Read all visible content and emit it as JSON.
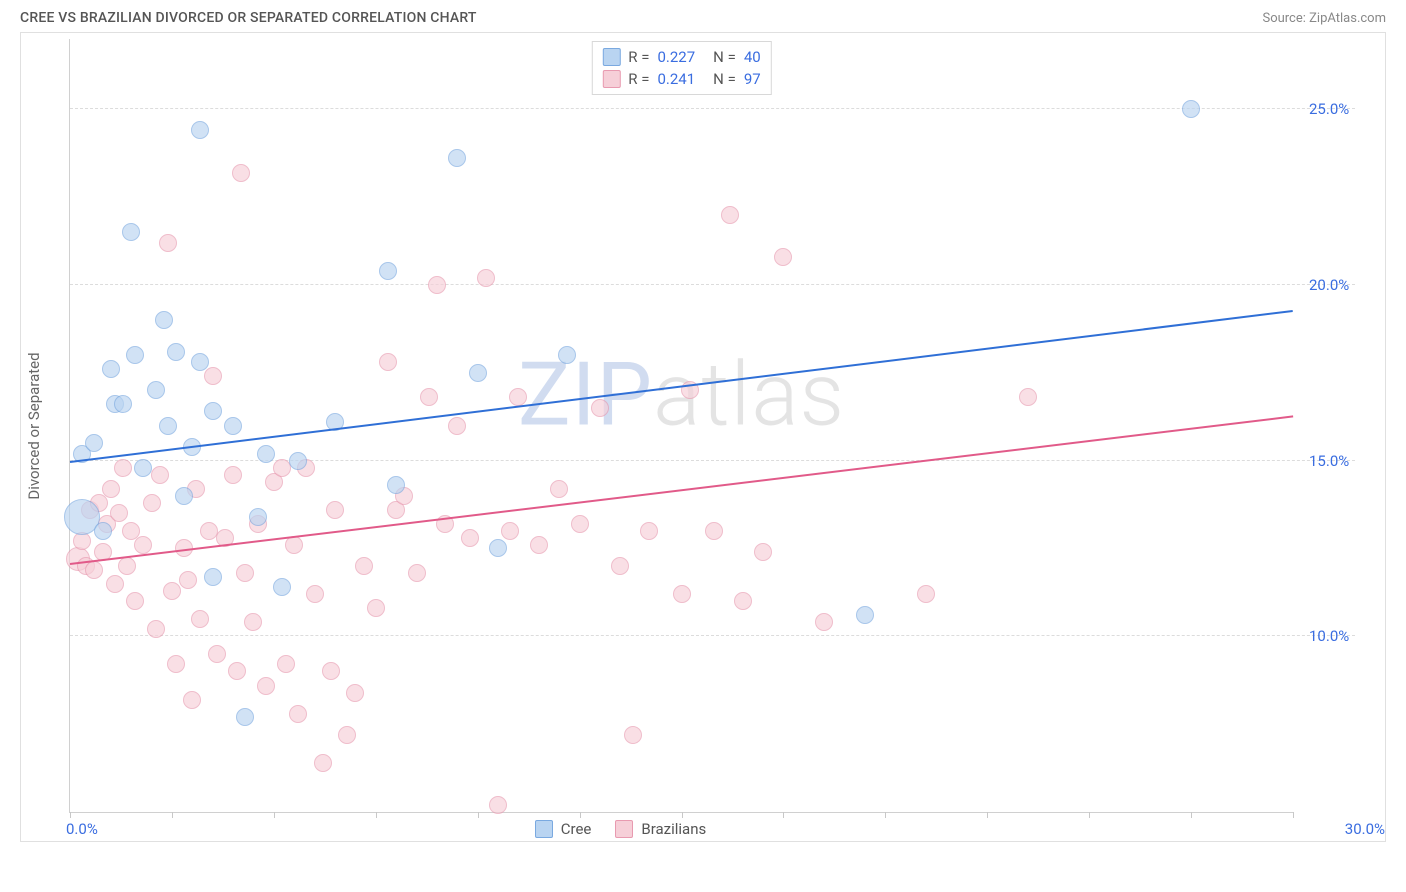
{
  "header": {
    "title": "CREE VS BRAZILIAN DIVORCED OR SEPARATED CORRELATION CHART",
    "source_prefix": "Source: ",
    "source_name": "ZipAtlas.com"
  },
  "chart": {
    "type": "scatter",
    "ylabel": "Divorced or Separated",
    "xlim": [
      0,
      30
    ],
    "ylim": [
      5,
      27
    ],
    "xtick_step": 2.5,
    "yticks": [
      10,
      15,
      20,
      25
    ],
    "ytick_suffix": ".0%",
    "xlabel_min": "0.0%",
    "xlabel_max": "30.0%",
    "background_color": "#ffffff",
    "grid_color": "#dcdcdc",
    "axis_color": "#d0d0d0",
    "tick_color": "#3a6de0",
    "marker_border_width": 1.5,
    "marker_opacity": 0.65,
    "watermark": {
      "z": "ZIP",
      "rest": "atlas"
    },
    "series": [
      {
        "id": "cree",
        "label": "Cree",
        "fill": "#b9d4f1",
        "stroke": "#7aa9e0",
        "line_color": "#2f6fd6",
        "R": "0.227",
        "N": "40",
        "trend_y_at_xmin": 15.0,
        "trend_y_at_xmax": 19.3,
        "points": [
          {
            "x": 0.3,
            "y": 15.2,
            "r": 9
          },
          {
            "x": 0.3,
            "y": 13.4,
            "r": 18
          },
          {
            "x": 0.6,
            "y": 15.5,
            "r": 9
          },
          {
            "x": 0.8,
            "y": 13.0,
            "r": 9
          },
          {
            "x": 1.0,
            "y": 17.6,
            "r": 9
          },
          {
            "x": 1.1,
            "y": 16.6,
            "r": 9
          },
          {
            "x": 1.3,
            "y": 16.6,
            "r": 9
          },
          {
            "x": 1.5,
            "y": 21.5,
            "r": 9
          },
          {
            "x": 1.6,
            "y": 18.0,
            "r": 9
          },
          {
            "x": 1.8,
            "y": 14.8,
            "r": 9
          },
          {
            "x": 2.1,
            "y": 17.0,
            "r": 9
          },
          {
            "x": 2.3,
            "y": 19.0,
            "r": 9
          },
          {
            "x": 2.4,
            "y": 16.0,
            "r": 9
          },
          {
            "x": 2.6,
            "y": 18.1,
            "r": 9
          },
          {
            "x": 2.8,
            "y": 14.0,
            "r": 9
          },
          {
            "x": 3.0,
            "y": 15.4,
            "r": 9
          },
          {
            "x": 3.2,
            "y": 24.4,
            "r": 9
          },
          {
            "x": 3.2,
            "y": 17.8,
            "r": 9
          },
          {
            "x": 3.5,
            "y": 16.4,
            "r": 9
          },
          {
            "x": 3.5,
            "y": 11.7,
            "r": 9
          },
          {
            "x": 4.0,
            "y": 16.0,
            "r": 9
          },
          {
            "x": 4.3,
            "y": 7.7,
            "r": 9
          },
          {
            "x": 4.6,
            "y": 13.4,
            "r": 9
          },
          {
            "x": 4.8,
            "y": 15.2,
            "r": 9
          },
          {
            "x": 5.2,
            "y": 11.4,
            "r": 9
          },
          {
            "x": 5.6,
            "y": 15.0,
            "r": 9
          },
          {
            "x": 6.5,
            "y": 16.1,
            "r": 9
          },
          {
            "x": 7.8,
            "y": 20.4,
            "r": 9
          },
          {
            "x": 8.0,
            "y": 14.3,
            "r": 9
          },
          {
            "x": 9.5,
            "y": 23.6,
            "r": 9
          },
          {
            "x": 10.0,
            "y": 17.5,
            "r": 9
          },
          {
            "x": 10.5,
            "y": 12.5,
            "r": 9
          },
          {
            "x": 12.2,
            "y": 18.0,
            "r": 9
          },
          {
            "x": 19.5,
            "y": 10.6,
            "r": 9
          },
          {
            "x": 27.5,
            "y": 25.0,
            "r": 9
          }
        ]
      },
      {
        "id": "brazilians",
        "label": "Brazilians",
        "fill": "#f6cfd8",
        "stroke": "#e89ab0",
        "line_color": "#e15a89",
        "R": "0.241",
        "N": "97",
        "trend_y_at_xmin": 12.1,
        "trend_y_at_xmax": 16.3,
        "points": [
          {
            "x": 0.2,
            "y": 12.2,
            "r": 12
          },
          {
            "x": 0.3,
            "y": 12.7,
            "r": 9
          },
          {
            "x": 0.4,
            "y": 12.0,
            "r": 9
          },
          {
            "x": 0.5,
            "y": 13.6,
            "r": 9
          },
          {
            "x": 0.6,
            "y": 11.9,
            "r": 9
          },
          {
            "x": 0.7,
            "y": 13.8,
            "r": 9
          },
          {
            "x": 0.8,
            "y": 12.4,
            "r": 9
          },
          {
            "x": 0.9,
            "y": 13.2,
            "r": 9
          },
          {
            "x": 1.0,
            "y": 14.2,
            "r": 9
          },
          {
            "x": 1.1,
            "y": 11.5,
            "r": 9
          },
          {
            "x": 1.2,
            "y": 13.5,
            "r": 9
          },
          {
            "x": 1.3,
            "y": 14.8,
            "r": 9
          },
          {
            "x": 1.4,
            "y": 12.0,
            "r": 9
          },
          {
            "x": 1.5,
            "y": 13.0,
            "r": 9
          },
          {
            "x": 1.6,
            "y": 11.0,
            "r": 9
          },
          {
            "x": 1.8,
            "y": 12.6,
            "r": 9
          },
          {
            "x": 2.0,
            "y": 13.8,
            "r": 9
          },
          {
            "x": 2.1,
            "y": 10.2,
            "r": 9
          },
          {
            "x": 2.2,
            "y": 14.6,
            "r": 9
          },
          {
            "x": 2.4,
            "y": 21.2,
            "r": 9
          },
          {
            "x": 2.5,
            "y": 11.3,
            "r": 9
          },
          {
            "x": 2.6,
            "y": 9.2,
            "r": 9
          },
          {
            "x": 2.8,
            "y": 12.5,
            "r": 9
          },
          {
            "x": 2.9,
            "y": 11.6,
            "r": 9
          },
          {
            "x": 3.0,
            "y": 8.2,
            "r": 9
          },
          {
            "x": 3.1,
            "y": 14.2,
            "r": 9
          },
          {
            "x": 3.2,
            "y": 10.5,
            "r": 9
          },
          {
            "x": 3.4,
            "y": 13.0,
            "r": 9
          },
          {
            "x": 3.5,
            "y": 17.4,
            "r": 9
          },
          {
            "x": 3.6,
            "y": 9.5,
            "r": 9
          },
          {
            "x": 3.8,
            "y": 12.8,
            "r": 9
          },
          {
            "x": 4.0,
            "y": 14.6,
            "r": 9
          },
          {
            "x": 4.1,
            "y": 9.0,
            "r": 9
          },
          {
            "x": 4.2,
            "y": 23.2,
            "r": 9
          },
          {
            "x": 4.3,
            "y": 11.8,
            "r": 9
          },
          {
            "x": 4.5,
            "y": 10.4,
            "r": 9
          },
          {
            "x": 4.6,
            "y": 13.2,
            "r": 9
          },
          {
            "x": 4.8,
            "y": 8.6,
            "r": 9
          },
          {
            "x": 5.0,
            "y": 14.4,
            "r": 9
          },
          {
            "x": 5.2,
            "y": 14.8,
            "r": 9
          },
          {
            "x": 5.3,
            "y": 9.2,
            "r": 9
          },
          {
            "x": 5.5,
            "y": 12.6,
            "r": 9
          },
          {
            "x": 5.6,
            "y": 7.8,
            "r": 9
          },
          {
            "x": 5.8,
            "y": 14.8,
            "r": 9
          },
          {
            "x": 6.0,
            "y": 11.2,
            "r": 9
          },
          {
            "x": 6.2,
            "y": 6.4,
            "r": 9
          },
          {
            "x": 6.4,
            "y": 9.0,
            "r": 9
          },
          {
            "x": 6.5,
            "y": 13.6,
            "r": 9
          },
          {
            "x": 6.8,
            "y": 7.2,
            "r": 9
          },
          {
            "x": 7.0,
            "y": 8.4,
            "r": 9
          },
          {
            "x": 7.2,
            "y": 12.0,
            "r": 9
          },
          {
            "x": 7.5,
            "y": 10.8,
            "r": 9
          },
          {
            "x": 7.8,
            "y": 17.8,
            "r": 9
          },
          {
            "x": 8.0,
            "y": 13.6,
            "r": 9
          },
          {
            "x": 8.2,
            "y": 14.0,
            "r": 9
          },
          {
            "x": 8.5,
            "y": 11.8,
            "r": 9
          },
          {
            "x": 8.8,
            "y": 16.8,
            "r": 9
          },
          {
            "x": 9.0,
            "y": 20.0,
            "r": 9
          },
          {
            "x": 9.2,
            "y": 13.2,
            "r": 9
          },
          {
            "x": 9.5,
            "y": 16.0,
            "r": 9
          },
          {
            "x": 9.8,
            "y": 12.8,
            "r": 9
          },
          {
            "x": 10.2,
            "y": 20.2,
            "r": 9
          },
          {
            "x": 10.5,
            "y": 5.2,
            "r": 9
          },
          {
            "x": 10.8,
            "y": 13.0,
            "r": 9
          },
          {
            "x": 11.0,
            "y": 16.8,
            "r": 9
          },
          {
            "x": 11.5,
            "y": 12.6,
            "r": 9
          },
          {
            "x": 12.0,
            "y": 14.2,
            "r": 9
          },
          {
            "x": 12.5,
            "y": 13.2,
            "r": 9
          },
          {
            "x": 13.0,
            "y": 16.5,
            "r": 9
          },
          {
            "x": 13.5,
            "y": 12.0,
            "r": 9
          },
          {
            "x": 13.8,
            "y": 7.2,
            "r": 9
          },
          {
            "x": 14.2,
            "y": 13.0,
            "r": 9
          },
          {
            "x": 15.0,
            "y": 11.2,
            "r": 9
          },
          {
            "x": 15.2,
            "y": 17.0,
            "r": 9
          },
          {
            "x": 15.8,
            "y": 13.0,
            "r": 9
          },
          {
            "x": 16.2,
            "y": 22.0,
            "r": 9
          },
          {
            "x": 16.5,
            "y": 11.0,
            "r": 9
          },
          {
            "x": 17.0,
            "y": 12.4,
            "r": 9
          },
          {
            "x": 17.5,
            "y": 20.8,
            "r": 9
          },
          {
            "x": 18.5,
            "y": 10.4,
            "r": 9
          },
          {
            "x": 21.0,
            "y": 11.2,
            "r": 9
          },
          {
            "x": 23.5,
            "y": 16.8,
            "r": 9
          }
        ]
      }
    ],
    "legend_top": {
      "R_label": "R =",
      "N_label": "N ="
    },
    "legend_bottom": true
  }
}
